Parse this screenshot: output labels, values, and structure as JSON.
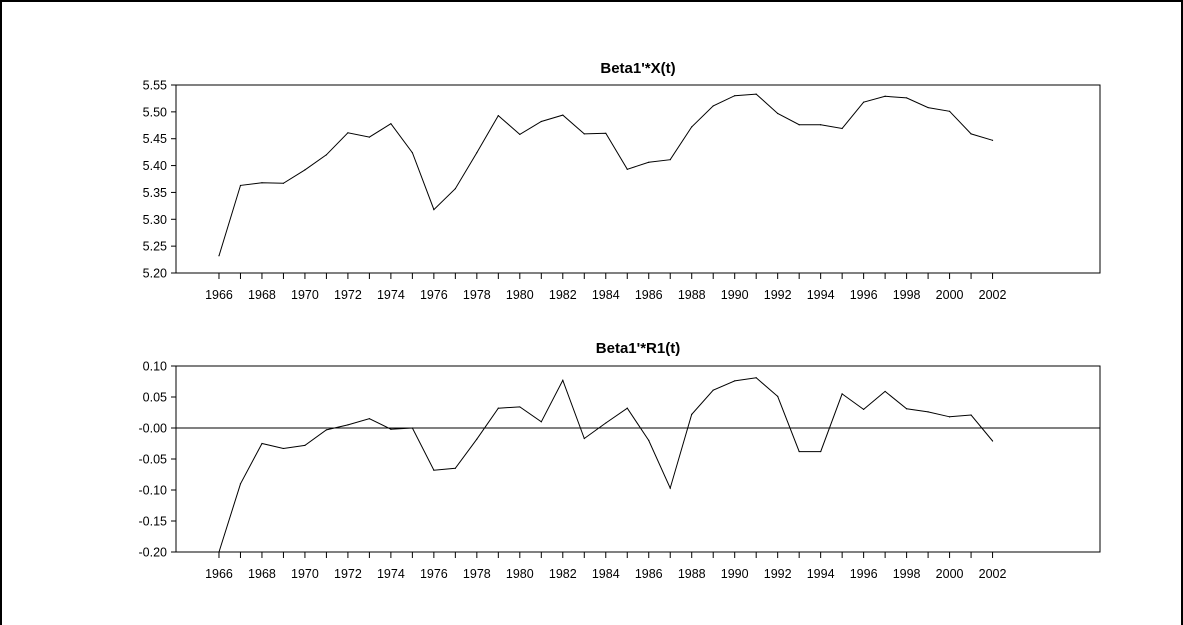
{
  "chart_data": [
    {
      "type": "line",
      "title": "Beta1'*X(t)",
      "xlabel": "",
      "ylabel": "",
      "x": [
        1966,
        1967,
        1968,
        1969,
        1970,
        1971,
        1972,
        1973,
        1974,
        1975,
        1976,
        1977,
        1978,
        1979,
        1980,
        1981,
        1982,
        1983,
        1984,
        1985,
        1986,
        1987,
        1988,
        1989,
        1990,
        1991,
        1992,
        1993,
        1994,
        1995,
        1996,
        1997,
        1998,
        1999,
        2000,
        2001,
        2002
      ],
      "series": [
        {
          "values": [
            5.232,
            5.363,
            5.368,
            5.367,
            5.392,
            5.42,
            5.461,
            5.453,
            5.478,
            5.424,
            5.318,
            5.357,
            5.424,
            5.493,
            5.458,
            5.482,
            5.494,
            5.459,
            5.46,
            5.393,
            5.406,
            5.411,
            5.472,
            5.511,
            5.53,
            5.533,
            5.497,
            5.476,
            5.476,
            5.469,
            5.518,
            5.529,
            5.526,
            5.508,
            5.501,
            5.459,
            5.447
          ],
          "color": "#000000"
        }
      ],
      "ylim": [
        5.2,
        5.55
      ],
      "xlim": [
        1964,
        2007
      ],
      "yticks": [
        "5.20",
        "5.25",
        "5.30",
        "5.35",
        "5.40",
        "5.45",
        "5.50",
        "5.55"
      ],
      "xticks": [
        "1966",
        "1968",
        "1970",
        "1972",
        "1974",
        "1976",
        "1978",
        "1980",
        "1982",
        "1984",
        "1986",
        "1988",
        "1990",
        "1992",
        "1994",
        "1996",
        "1998",
        "2000",
        "2002"
      ],
      "grid": false,
      "zero_line": false
    },
    {
      "type": "line",
      "title": "Beta1'*R1(t)",
      "xlabel": "",
      "ylabel": "",
      "x": [
        1966,
        1967,
        1968,
        1969,
        1970,
        1971,
        1972,
        1973,
        1974,
        1975,
        1976,
        1977,
        1978,
        1979,
        1980,
        1981,
        1982,
        1983,
        1984,
        1985,
        1986,
        1987,
        1988,
        1989,
        1990,
        1991,
        1992,
        1993,
        1994,
        1995,
        1996,
        1997,
        1998,
        1999,
        2000,
        2001,
        2002
      ],
      "series": [
        {
          "values": [
            -0.2,
            -0.09,
            -0.025,
            -0.033,
            -0.028,
            -0.003,
            0.005,
            0.015,
            -0.002,
            0.0,
            -0.068,
            -0.065,
            -0.018,
            0.032,
            0.034,
            0.01,
            0.077,
            -0.017,
            0.008,
            0.032,
            -0.02,
            -0.097,
            0.022,
            0.061,
            0.076,
            0.081,
            0.051,
            -0.038,
            -0.038,
            0.055,
            0.03,
            0.059,
            0.031,
            0.026,
            0.018,
            0.021,
            -0.021
          ],
          "color": "#000000"
        }
      ],
      "ylim": [
        -0.2,
        0.1
      ],
      "xlim": [
        1964,
        2007
      ],
      "yticks": [
        "-0.20",
        "-0.15",
        "-0.10",
        "-0.05",
        "-0.00",
        "0.05",
        "0.10"
      ],
      "xticks": [
        "1966",
        "1968",
        "1970",
        "1972",
        "1974",
        "1976",
        "1978",
        "1980",
        "1982",
        "1984",
        "1986",
        "1988",
        "1990",
        "1992",
        "1994",
        "1996",
        "1998",
        "2000",
        "2002"
      ],
      "grid": false,
      "zero_line": true
    }
  ]
}
